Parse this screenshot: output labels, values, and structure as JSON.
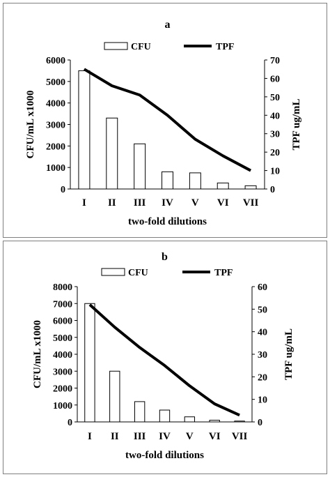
{
  "chart_data": [
    {
      "panel_label": "a",
      "type": "bar",
      "categories": [
        "I",
        "II",
        "III",
        "IV",
        "V",
        "VI",
        "VII"
      ],
      "series": [
        {
          "name": "CFU",
          "type": "bar",
          "axis": "left",
          "values": [
            5500,
            3300,
            2100,
            800,
            750,
            280,
            150
          ]
        },
        {
          "name": "TPF",
          "type": "line",
          "axis": "right",
          "values": [
            65,
            56,
            51,
            40,
            27,
            18,
            10
          ]
        }
      ],
      "xlabel": "two-fold dilutions",
      "ylabel": "CFU/mL  x1000",
      "y2label": "TPF ug/mL",
      "ylim": [
        0,
        6000
      ],
      "y2lim": [
        0,
        70
      ],
      "yticks": [
        "0",
        "1000",
        "2000",
        "3000",
        "4000",
        "5000",
        "6000"
      ],
      "y2ticks": [
        "0",
        "10",
        "20",
        "30",
        "40",
        "50",
        "60",
        "70"
      ],
      "legend": "top-center",
      "grid": false
    },
    {
      "panel_label": "b",
      "type": "bar",
      "categories": [
        "I",
        "II",
        "III",
        "IV",
        "V",
        "VI",
        "VII"
      ],
      "series": [
        {
          "name": "CFU",
          "type": "bar",
          "axis": "left",
          "values": [
            7000,
            3000,
            1200,
            700,
            300,
            100,
            50
          ]
        },
        {
          "name": "TPF",
          "type": "line",
          "axis": "right",
          "values": [
            52,
            42,
            33,
            25,
            16,
            8,
            3
          ]
        }
      ],
      "xlabel": "two-fold dilutions",
      "ylabel": "CFU/mL x1000",
      "y2label": "TPF ug/mL",
      "ylim": [
        0,
        8000
      ],
      "y2lim": [
        0,
        60
      ],
      "yticks": [
        "0",
        "1000",
        "2000",
        "3000",
        "4000",
        "5000",
        "6000",
        "7000",
        "8000"
      ],
      "y2ticks": [
        "0",
        "10",
        "20",
        "30",
        "40",
        "50",
        "60"
      ],
      "legend": "top-center",
      "grid": false
    }
  ]
}
